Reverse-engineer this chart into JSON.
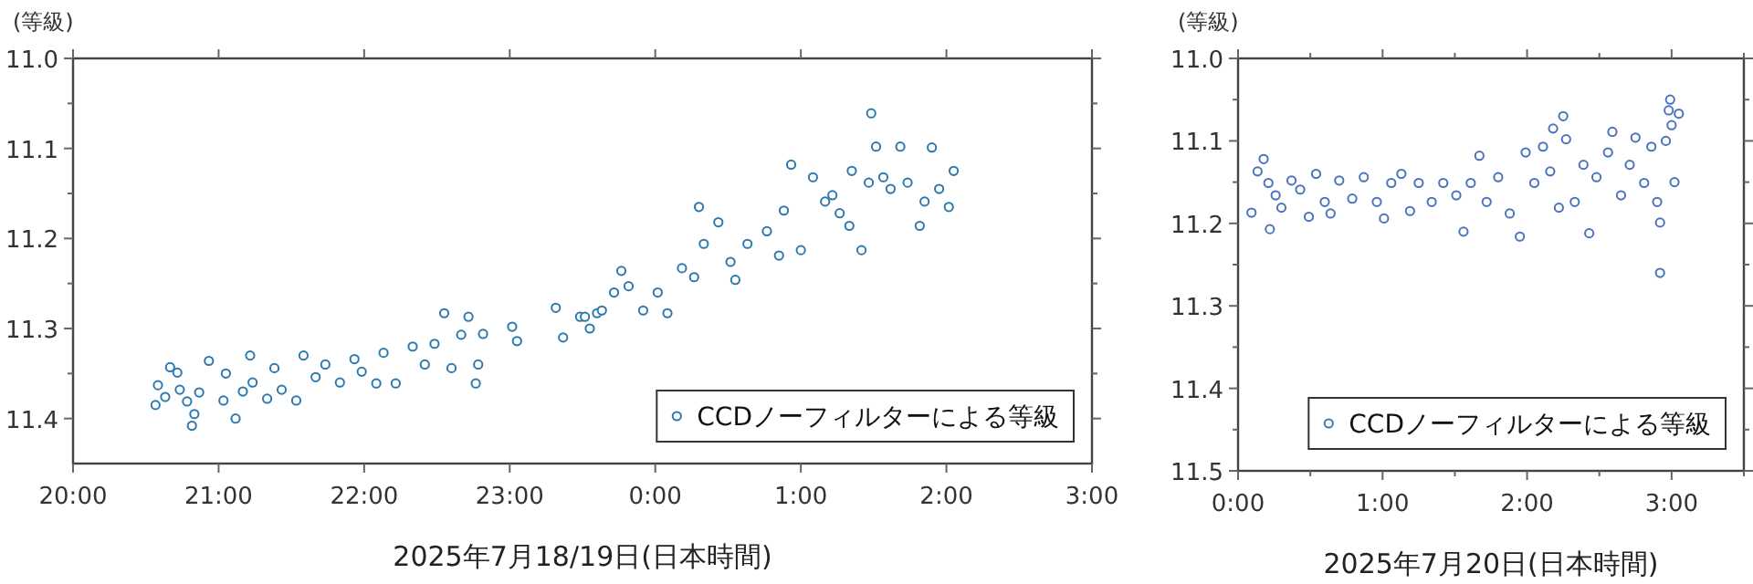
{
  "chart_data": [
    {
      "type": "scatter",
      "ylabel": "(等級)",
      "xlabel": "2025年7月18/19日(日本時間)",
      "xlim": [
        "2025-07-18T20:00",
        "2025-07-19T03:00"
      ],
      "ylim": [
        11.45,
        11.0
      ],
      "xticks": [
        {
          "value": "2025-07-18T20:00",
          "label": "20:00"
        },
        {
          "value": "2025-07-18T21:00",
          "label": "21:00"
        },
        {
          "value": "2025-07-18T22:00",
          "label": "22:00"
        },
        {
          "value": "2025-07-18T23:00",
          "label": "23:00"
        },
        {
          "value": "2025-07-19T00:00",
          "label": "0:00"
        },
        {
          "value": "2025-07-19T01:00",
          "label": "1:00"
        },
        {
          "value": "2025-07-19T02:00",
          "label": "2:00"
        },
        {
          "value": "2025-07-19T03:00",
          "label": "3:00"
        }
      ],
      "yticks": [
        {
          "value": 11.0,
          "label": "11.0"
        },
        {
          "value": 11.05,
          "label": null
        },
        {
          "value": 11.1,
          "label": "11.1"
        },
        {
          "value": 11.15,
          "label": null
        },
        {
          "value": 11.2,
          "label": "11.2"
        },
        {
          "value": 11.25,
          "label": null
        },
        {
          "value": 11.3,
          "label": "11.3"
        },
        {
          "value": 11.35,
          "label": null
        },
        {
          "value": 11.4,
          "label": "11.4"
        }
      ],
      "grid": false,
      "legend": "bottom right",
      "marker": "circle",
      "series": [
        {
          "name": "CCDノーフィルターによる等級",
          "color": "#2a7ab0",
          "x": [
            "2025-07-18T20:34",
            "2025-07-18T20:35",
            "2025-07-18T20:38",
            "2025-07-18T20:40",
            "2025-07-18T20:43",
            "2025-07-18T20:44",
            "2025-07-18T20:47",
            "2025-07-18T20:49",
            "2025-07-18T20:50",
            "2025-07-18T20:52",
            "2025-07-18T20:56",
            "2025-07-18T21:02",
            "2025-07-18T21:03",
            "2025-07-18T21:07",
            "2025-07-18T21:10",
            "2025-07-18T21:13",
            "2025-07-18T21:14",
            "2025-07-18T21:20",
            "2025-07-18T21:23",
            "2025-07-18T21:26",
            "2025-07-18T21:32",
            "2025-07-18T21:35",
            "2025-07-18T21:40",
            "2025-07-18T21:44",
            "2025-07-18T21:50",
            "2025-07-18T21:56",
            "2025-07-18T21:59",
            "2025-07-18T22:05",
            "2025-07-18T22:08",
            "2025-07-18T22:13",
            "2025-07-18T22:20",
            "2025-07-18T22:25",
            "2025-07-18T22:29",
            "2025-07-18T22:33",
            "2025-07-18T22:36",
            "2025-07-18T22:40",
            "2025-07-18T22:43",
            "2025-07-18T22:46",
            "2025-07-18T22:47",
            "2025-07-18T22:49",
            "2025-07-18T23:01",
            "2025-07-18T23:03",
            "2025-07-18T23:19",
            "2025-07-18T23:22",
            "2025-07-18T23:29",
            "2025-07-18T23:31",
            "2025-07-18T23:33",
            "2025-07-18T23:36",
            "2025-07-18T23:38",
            "2025-07-18T23:43",
            "2025-07-18T23:46",
            "2025-07-18T23:49",
            "2025-07-18T23:55",
            "2025-07-19T00:01",
            "2025-07-19T00:05",
            "2025-07-19T00:11",
            "2025-07-19T00:16",
            "2025-07-19T00:18",
            "2025-07-19T00:20",
            "2025-07-19T00:26",
            "2025-07-19T00:31",
            "2025-07-19T00:33",
            "2025-07-19T00:38",
            "2025-07-19T00:46",
            "2025-07-19T00:51",
            "2025-07-19T00:53",
            "2025-07-19T00:56",
            "2025-07-19T01:00",
            "2025-07-19T01:05",
            "2025-07-19T01:10",
            "2025-07-19T01:13",
            "2025-07-19T01:16",
            "2025-07-19T01:20",
            "2025-07-19T01:21",
            "2025-07-19T01:25",
            "2025-07-19T01:28",
            "2025-07-19T01:29",
            "2025-07-19T01:31",
            "2025-07-19T01:34",
            "2025-07-19T01:37",
            "2025-07-19T01:41",
            "2025-07-19T01:44",
            "2025-07-19T01:49",
            "2025-07-19T01:51",
            "2025-07-19T01:54",
            "2025-07-19T01:57",
            "2025-07-19T02:01",
            "2025-07-19T02:03"
          ],
          "values": [
            11.385,
            11.363,
            11.376,
            11.343,
            11.349,
            11.368,
            11.381,
            11.408,
            11.395,
            11.371,
            11.336,
            11.38,
            11.35,
            11.4,
            11.37,
            11.33,
            11.36,
            11.378,
            11.344,
            11.368,
            11.38,
            11.33,
            11.354,
            11.34,
            11.36,
            11.334,
            11.348,
            11.361,
            11.327,
            11.361,
            11.32,
            11.34,
            11.317,
            11.283,
            11.344,
            11.307,
            11.287,
            11.361,
            11.34,
            11.306,
            11.298,
            11.314,
            11.277,
            11.31,
            11.287,
            11.287,
            11.3,
            11.283,
            11.28,
            11.26,
            11.236,
            11.253,
            11.28,
            11.26,
            11.283,
            11.233,
            11.243,
            11.165,
            11.206,
            11.182,
            11.226,
            11.246,
            11.206,
            11.192,
            11.219,
            11.169,
            11.118,
            11.213,
            11.132,
            11.159,
            11.152,
            11.172,
            11.186,
            11.125,
            11.213,
            11.138,
            11.061,
            11.098,
            11.132,
            11.145,
            11.098,
            11.138,
            11.186,
            11.159,
            11.099,
            11.145,
            11.165,
            11.125
          ]
        }
      ]
    },
    {
      "type": "scatter",
      "ylabel": "(等級)",
      "xlabel": "2025年7月20日(日本時間)",
      "xlim": [
        0,
        3.5
      ],
      "ylim": [
        11.5,
        11.0
      ],
      "xticks": [
        {
          "value": 0,
          "label": "0:00"
        },
        {
          "value": 0.5,
          "label": null
        },
        {
          "value": 1,
          "label": "1:00"
        },
        {
          "value": 1.5,
          "label": null
        },
        {
          "value": 2,
          "label": "2:00"
        },
        {
          "value": 2.5,
          "label": null
        },
        {
          "value": 3,
          "label": "3:00"
        },
        {
          "value": 3.5,
          "label": null
        }
      ],
      "yticks": [
        {
          "value": 11.0,
          "label": "11.0"
        },
        {
          "value": 11.05,
          "label": null
        },
        {
          "value": 11.1,
          "label": "11.1"
        },
        {
          "value": 11.15,
          "label": null
        },
        {
          "value": 11.2,
          "label": "11.2"
        },
        {
          "value": 11.25,
          "label": null
        },
        {
          "value": 11.3,
          "label": "11.3"
        },
        {
          "value": 11.35,
          "label": null
        },
        {
          "value": 11.4,
          "label": "11.4"
        },
        {
          "value": 11.45,
          "label": null
        },
        {
          "value": 11.5,
          "label": "11.5"
        }
      ],
      "grid": false,
      "legend": "bottom right",
      "marker": "circle",
      "series": [
        {
          "name": "CCDノーフィルターによる等級",
          "color": "#4a73c0",
          "x": [
            0.093,
            0.135,
            0.177,
            0.21,
            0.22,
            0.26,
            0.3,
            0.37,
            0.43,
            0.49,
            0.54,
            0.6,
            0.64,
            0.7,
            0.79,
            0.87,
            0.96,
            1.01,
            1.06,
            1.13,
            1.19,
            1.25,
            1.34,
            1.42,
            1.51,
            1.56,
            1.61,
            1.67,
            1.72,
            1.8,
            1.88,
            1.95,
            1.99,
            2.05,
            2.11,
            2.16,
            2.18,
            2.22,
            2.25,
            2.27,
            2.33,
            2.39,
            2.43,
            2.48,
            2.56,
            2.59,
            2.65,
            2.71,
            2.75,
            2.81,
            2.86,
            2.9,
            2.92,
            2.92,
            2.96,
            2.98,
            2.99,
            3.0,
            3.02,
            3.05
          ],
          "values": [
            11.187,
            11.137,
            11.122,
            11.151,
            11.207,
            11.166,
            11.181,
            11.148,
            11.159,
            11.192,
            11.14,
            11.174,
            11.188,
            11.148,
            11.17,
            11.144,
            11.174,
            11.194,
            11.151,
            11.14,
            11.185,
            11.151,
            11.174,
            11.151,
            11.166,
            11.21,
            11.151,
            11.118,
            11.174,
            11.144,
            11.188,
            11.216,
            11.114,
            11.151,
            11.107,
            11.137,
            11.085,
            11.181,
            11.07,
            11.098,
            11.174,
            11.129,
            11.212,
            11.144,
            11.114,
            11.089,
            11.166,
            11.129,
            11.096,
            11.151,
            11.107,
            11.174,
            11.199,
            11.26,
            11.1,
            11.063,
            11.05,
            11.081,
            11.15,
            11.067
          ]
        }
      ]
    }
  ]
}
